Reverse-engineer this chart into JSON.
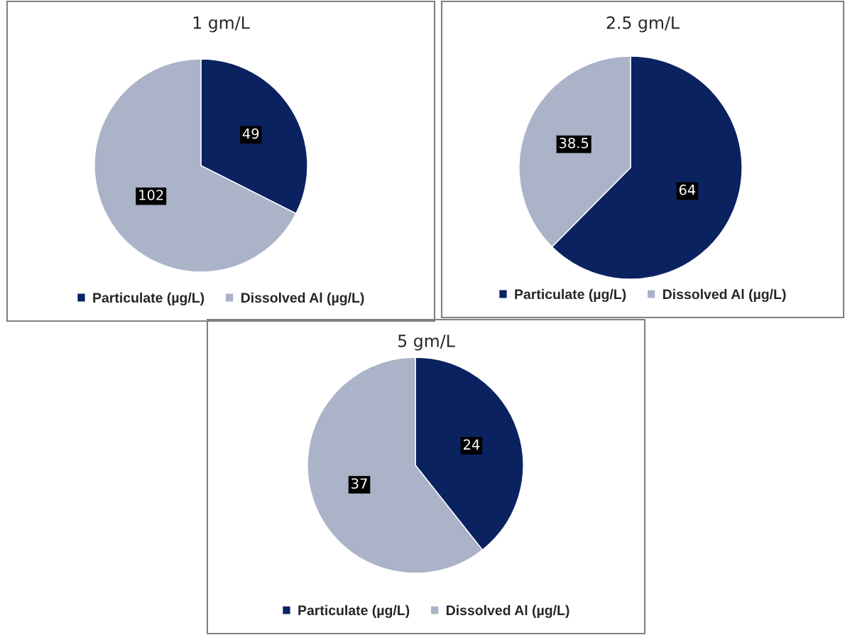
{
  "chart_data": [
    {
      "type": "pie",
      "title": "1 gm/L",
      "categories": [
        "Particulate (µg/L)",
        "Dissolved Al (µg/L)"
      ],
      "values": [
        49,
        102
      ],
      "colors": [
        "#0b2260",
        "#aab3c8"
      ],
      "data_labels": true,
      "legend": "bottom"
    },
    {
      "type": "pie",
      "title": "2.5 gm/L",
      "categories": [
        "Particulate (µg/L)",
        "Dissolved Al (µg/L)"
      ],
      "values": [
        64,
        38.5
      ],
      "colors": [
        "#0b2260",
        "#aab3c8"
      ],
      "data_labels": true,
      "legend": "bottom"
    },
    {
      "type": "pie",
      "title": "5 gm/L",
      "categories": [
        "Particulate (µg/L)",
        "Dissolved Al (µg/L)"
      ],
      "values": [
        24,
        37
      ],
      "colors": [
        "#0b2260",
        "#aab3c8"
      ],
      "data_labels": true,
      "legend": "bottom"
    }
  ]
}
